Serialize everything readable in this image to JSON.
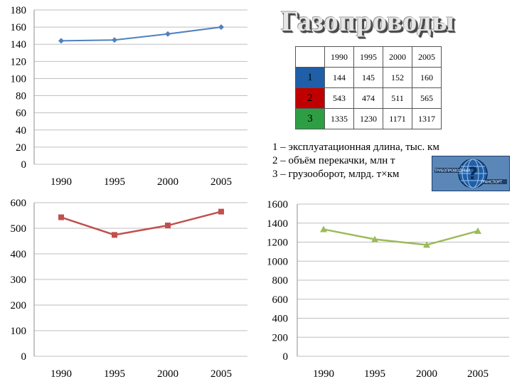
{
  "title": "Газопроводы",
  "table": {
    "columns": [
      "1990",
      "1995",
      "2000",
      "2005"
    ],
    "rows": [
      {
        "label": "1",
        "color": "#1f5fa8",
        "values": [
          "144",
          "145",
          "152",
          "160"
        ]
      },
      {
        "label": "2",
        "color": "#c00000",
        "values": [
          "543",
          "474",
          "511",
          "565"
        ]
      },
      {
        "label": "3",
        "color": "#2e9e45",
        "values": [
          "1335",
          "1230",
          "1171",
          "1317"
        ]
      }
    ]
  },
  "legend": [
    "1 – эксплуатационная длина, тыс. км",
    "2 – объём перекачки, млн т",
    "3 – грузооборот, млрд. т×км"
  ],
  "logo": {
    "text_top": "ТРУБОПРОВОДНЫЙ",
    "text_bottom": "ТРАНСПОРТ"
  },
  "chart_data": [
    {
      "type": "line",
      "categories": [
        "1990",
        "1995",
        "2000",
        "2005"
      ],
      "series": [
        {
          "values": [
            144,
            145,
            152,
            160
          ],
          "color": "#4f81bd",
          "marker": "diamond"
        }
      ],
      "ylim": [
        0,
        180
      ],
      "yticks": [
        0,
        20,
        40,
        60,
        80,
        100,
        120,
        140,
        160,
        180
      ],
      "grid": true
    },
    {
      "type": "line",
      "categories": [
        "1990",
        "1995",
        "2000",
        "2005"
      ],
      "series": [
        {
          "values": [
            543,
            474,
            511,
            565
          ],
          "color": "#c0504d",
          "marker": "square"
        }
      ],
      "ylim": [
        0,
        600
      ],
      "yticks": [
        0,
        100,
        200,
        300,
        400,
        500,
        600
      ],
      "grid": true
    },
    {
      "type": "line",
      "categories": [
        "1990",
        "1995",
        "2000",
        "2005"
      ],
      "series": [
        {
          "values": [
            1335,
            1230,
            1171,
            1317
          ],
          "color": "#9bbb59",
          "marker": "triangle"
        }
      ],
      "ylim": [
        0,
        1600
      ],
      "yticks": [
        0,
        200,
        400,
        600,
        800,
        1000,
        1200,
        1400,
        1600
      ],
      "grid": true
    }
  ]
}
